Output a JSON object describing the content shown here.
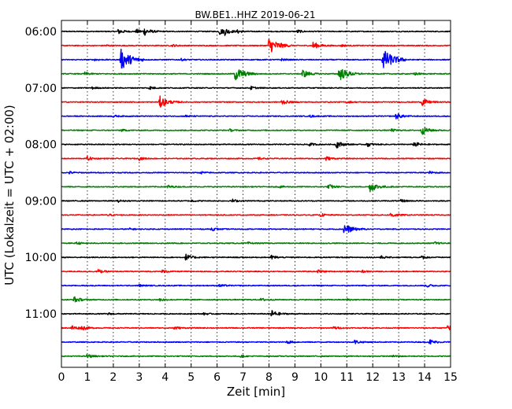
{
  "chart_data": {
    "type": "line",
    "title": "BW.BE1..HHZ 2019-06-21",
    "xlabel": "Zeit  [min]",
    "ylabel": "UTC (Lokalzeit = UTC + 02:00)",
    "xlim": [
      0,
      15
    ],
    "x_ticks": [
      "0",
      "1",
      "2",
      "3",
      "4",
      "5",
      "6",
      "7",
      "8",
      "9",
      "10",
      "11",
      "12",
      "13",
      "14",
      "15"
    ],
    "row_interval_min": 15,
    "start_time": "06:00",
    "y_tick_labels": [
      "06:00",
      "07:00",
      "08:00",
      "09:00",
      "10:00",
      "11:00"
    ],
    "grid": "vertical dotted lines each minute",
    "colors": [
      "#000000",
      "#ff0000",
      "#0000ff",
      "#008000"
    ],
    "series": [
      {
        "events": [
          [
            2.2,
            0.25
          ],
          [
            2.9,
            0.2
          ],
          [
            3.2,
            0.35
          ],
          [
            6.1,
            0.3
          ],
          [
            6.3,
            0.25
          ],
          [
            6.8,
            0.15
          ],
          [
            9.1,
            0.15
          ]
        ]
      },
      {
        "events": [
          [
            8.0,
            0.8
          ],
          [
            9.7,
            0.35
          ],
          [
            1.7,
            0.1
          ],
          [
            4.3,
            0.1
          ],
          [
            10.8,
            0.1
          ]
        ]
      },
      {
        "events": [
          [
            2.3,
            1.0
          ],
          [
            12.4,
            1.0
          ],
          [
            1.3,
            0.1
          ],
          [
            4.6,
            0.1
          ],
          [
            8.5,
            0.1
          ]
        ]
      },
      {
        "events": [
          [
            6.7,
            0.7
          ],
          [
            9.3,
            0.4
          ],
          [
            10.7,
            0.7
          ],
          [
            13.6,
            0.15
          ],
          [
            0.9,
            0.15
          ]
        ]
      },
      {
        "events": [
          [
            3.4,
            0.15
          ],
          [
            7.3,
            0.15
          ],
          [
            1.2,
            0.1
          ]
        ]
      },
      {
        "events": [
          [
            3.8,
            0.55
          ],
          [
            8.5,
            0.25
          ],
          [
            13.9,
            0.35
          ],
          [
            11.0,
            0.1
          ]
        ]
      },
      {
        "events": [
          [
            12.9,
            0.3
          ],
          [
            2.0,
            0.1
          ],
          [
            4.8,
            0.1
          ],
          [
            9.6,
            0.1
          ]
        ]
      },
      {
        "events": [
          [
            13.9,
            0.4
          ],
          [
            12.7,
            0.15
          ],
          [
            2.3,
            0.1
          ],
          [
            6.5,
            0.1
          ]
        ]
      },
      {
        "events": [
          [
            10.6,
            0.35
          ],
          [
            11.8,
            0.2
          ],
          [
            13.6,
            0.25
          ],
          [
            9.5,
            0.2
          ]
        ]
      },
      {
        "events": [
          [
            1.0,
            0.2
          ],
          [
            3.0,
            0.15
          ],
          [
            10.2,
            0.2
          ],
          [
            7.6,
            0.1
          ]
        ]
      },
      {
        "events": [
          [
            0.3,
            0.12
          ],
          [
            14.2,
            0.12
          ],
          [
            5.4,
            0.1
          ]
        ]
      },
      {
        "events": [
          [
            11.9,
            0.5
          ],
          [
            10.3,
            0.25
          ],
          [
            4.1,
            0.15
          ],
          [
            8.4,
            0.1
          ]
        ]
      },
      {
        "events": [
          [
            6.6,
            0.15
          ],
          [
            13.1,
            0.15
          ],
          [
            2.2,
            0.1
          ],
          [
            5.0,
            0.1
          ]
        ]
      },
      {
        "events": [
          [
            12.7,
            0.25
          ],
          [
            10.0,
            0.15
          ],
          [
            1.8,
            0.1
          ]
        ]
      },
      {
        "events": [
          [
            10.9,
            0.55
          ],
          [
            5.8,
            0.15
          ],
          [
            2.6,
            0.1
          ]
        ]
      },
      {
        "events": [
          [
            0.6,
            0.12
          ],
          [
            14.4,
            0.12
          ],
          [
            7.2,
            0.1
          ]
        ]
      },
      {
        "events": [
          [
            4.8,
            0.3
          ],
          [
            8.1,
            0.2
          ],
          [
            12.3,
            0.15
          ],
          [
            13.9,
            0.15
          ]
        ]
      },
      {
        "events": [
          [
            1.4,
            0.2
          ],
          [
            3.9,
            0.15
          ],
          [
            9.9,
            0.15
          ],
          [
            11.6,
            0.1
          ]
        ]
      },
      {
        "events": [
          [
            6.1,
            0.15
          ],
          [
            14.1,
            0.15
          ],
          [
            3.0,
            0.1
          ]
        ]
      },
      {
        "events": [
          [
            0.5,
            0.3
          ],
          [
            3.8,
            0.15
          ],
          [
            7.7,
            0.15
          ],
          [
            11.0,
            0.1
          ]
        ]
      },
      {
        "events": [
          [
            8.1,
            0.35
          ],
          [
            1.8,
            0.1
          ],
          [
            5.5,
            0.1
          ]
        ]
      },
      {
        "events": [
          [
            0.4,
            0.25
          ],
          [
            0.8,
            0.2
          ],
          [
            4.3,
            0.2
          ],
          [
            10.5,
            0.15
          ],
          [
            14.9,
            0.25
          ]
        ]
      },
      {
        "events": [
          [
            8.7,
            0.15
          ],
          [
            11.3,
            0.2
          ],
          [
            14.2,
            0.25
          ]
        ]
      },
      {
        "events": [
          [
            1.0,
            0.2
          ],
          [
            6.9,
            0.1
          ],
          [
            12.8,
            0.1
          ]
        ]
      }
    ]
  }
}
